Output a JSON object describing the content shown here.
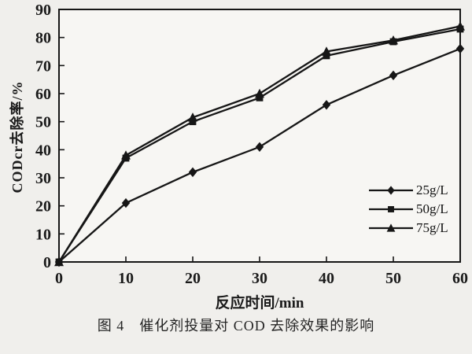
{
  "figure": {
    "caption": "图 4　催化剂投量对 COD 去除效果的影响"
  },
  "chart_data": {
    "type": "line",
    "x": [
      0,
      10,
      20,
      30,
      40,
      50,
      60
    ],
    "series": [
      {
        "name": "25g/L",
        "marker": "diamond",
        "values": [
          0,
          21,
          32,
          41,
          56,
          66.5,
          76
        ]
      },
      {
        "name": "50g/L",
        "marker": "square",
        "values": [
          0,
          37,
          50,
          58.5,
          73.5,
          78.5,
          83
        ]
      },
      {
        "name": "75g/L",
        "marker": "triangle",
        "values": [
          0,
          38,
          51.5,
          60,
          75,
          79,
          84
        ]
      }
    ],
    "xlabel": "反应时间/min",
    "ylabel": "CODcr去除率/%",
    "xlim": [
      0,
      60
    ],
    "ylim": [
      0,
      90
    ],
    "x_ticks": [
      0,
      10,
      20,
      30,
      40,
      50,
      60
    ],
    "y_ticks": [
      0,
      10,
      20,
      30,
      40,
      50,
      60,
      70,
      80,
      90
    ],
    "grid": false,
    "legend_position": "inside-right-center",
    "line_color": "#161616",
    "plot_bg": "#f7f6f3"
  }
}
